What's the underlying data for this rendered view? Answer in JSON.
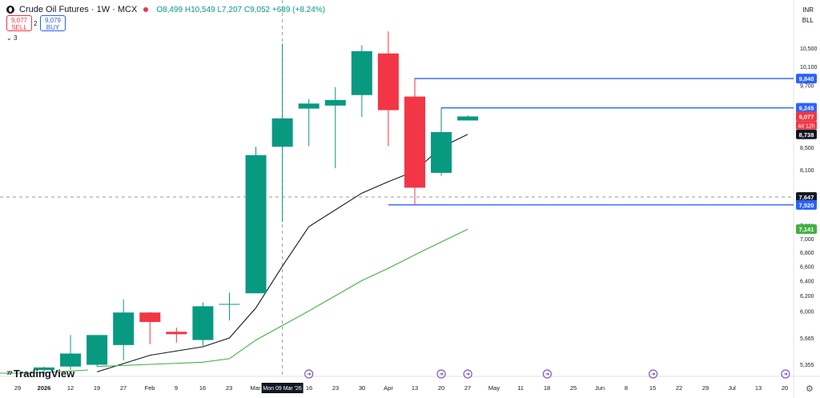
{
  "header": {
    "title": "Crude Oil Futures · 1W · MCX",
    "ohlc_label": "O8,499 H10,549 L7,207 C9,052 +689 (+8.24%)",
    "sell_price": "9,077",
    "sell_label": "SELL",
    "spread": "2",
    "buy_price": "9,079",
    "buy_label": "BUY",
    "indicator_count": "3"
  },
  "currency": "INR",
  "settlement": "BLL",
  "logo_text": "TradingView",
  "colors": {
    "up": "#089981",
    "down": "#f23645",
    "ma_fast": "#131722",
    "ma_slow": "#43b043",
    "hline": "#2962ff"
  },
  "chart_data": {
    "type": "candlestick",
    "timeframe": "1W",
    "crosshair_date_label": "Mon 09 Mar '26",
    "crosshair_price_label": "7,647",
    "countdown_label": "4d 12h",
    "x_tick_labels": [
      "29",
      "2026",
      "12",
      "19",
      "27",
      "Feb",
      "9",
      "16",
      "23",
      "Mar",
      "16",
      "23",
      "30",
      "Apr",
      "13",
      "20",
      "27",
      "May",
      "11",
      "18",
      "25",
      "Jun",
      "8",
      "15",
      "22",
      "29",
      "Jul",
      "13",
      "20"
    ],
    "y_tick_labels": [
      5355,
      5665,
      6000,
      6200,
      6400,
      6600,
      6800,
      7000,
      7200,
      7600,
      8100,
      8500,
      8700,
      9300,
      9700,
      10100,
      10500
    ],
    "y_axis_scale": "log",
    "ylim": [
      5240,
      11200
    ],
    "candles": [
      {
        "x": "2026-01-05",
        "open": 5290,
        "high": 5330,
        "low": 5240,
        "close": 5320
      },
      {
        "x": "2026-01-12",
        "open": 5330,
        "high": 5700,
        "low": 5290,
        "close": 5480
      },
      {
        "x": "2026-01-19",
        "open": 5350,
        "high": 5700,
        "low": 5330,
        "close": 5700
      },
      {
        "x": "2026-01-26",
        "open": 5580,
        "high": 6150,
        "low": 5400,
        "close": 5980
      },
      {
        "x": "2026-02-02",
        "open": 5980,
        "high": 5985,
        "low": 5590,
        "close": 5860
      },
      {
        "x": "2026-02-09",
        "open": 5740,
        "high": 5790,
        "low": 5610,
        "close": 5710
      },
      {
        "x": "2026-02-16",
        "open": 5640,
        "high": 6110,
        "low": 5570,
        "close": 6060
      },
      {
        "x": "2026-02-23",
        "open": 6090,
        "high": 6240,
        "low": 5880,
        "close": 6090
      },
      {
        "x": "2026-03-02",
        "open": 6230,
        "high": 8510,
        "low": 6230,
        "close": 8360
      },
      {
        "x": "2026-03-09",
        "open": 8510,
        "high": 10600,
        "low": 7250,
        "close": 9040
      },
      {
        "x": "2026-03-16",
        "open": 9230,
        "high": 9420,
        "low": 8520,
        "close": 9330
      },
      {
        "x": "2026-03-23",
        "open": 9290,
        "high": 9660,
        "low": 8130,
        "close": 9400
      },
      {
        "x": "2026-03-30",
        "open": 9500,
        "high": 10560,
        "low": 9070,
        "close": 10430
      },
      {
        "x": "2026-04-06",
        "open": 10380,
        "high": 10880,
        "low": 8520,
        "close": 9200
      },
      {
        "x": "2026-04-13",
        "open": 9470,
        "high": 9840,
        "low": 7520,
        "close": 7800
      },
      {
        "x": "2026-04-20",
        "open": 8050,
        "high": 9245,
        "low": 8000,
        "close": 8780
      },
      {
        "x": "2026-04-27",
        "open": 9000,
        "high": 9099,
        "low": 9005,
        "close": 9077
      }
    ],
    "moving_averages": [
      {
        "period_hint": "fast",
        "color": "#131722",
        "values": [
          {
            "x": "2026-01-19",
            "y": 5270
          },
          {
            "x": "2026-02-02",
            "y": 5460
          },
          {
            "x": "2026-02-16",
            "y": 5560
          },
          {
            "x": "2026-02-23",
            "y": 5665
          },
          {
            "x": "2026-03-02",
            "y": 6040
          },
          {
            "x": "2026-03-09",
            "y": 6600
          },
          {
            "x": "2026-03-16",
            "y": 7180
          },
          {
            "x": "2026-03-30",
            "y": 7710
          },
          {
            "x": "2026-04-06",
            "y": 7900
          },
          {
            "x": "2026-04-13",
            "y": 8080
          },
          {
            "x": "2026-04-20",
            "y": 8500
          },
          {
            "x": "2026-04-27",
            "y": 8738
          }
        ]
      },
      {
        "period_hint": "slow",
        "color": "#43b043",
        "values": [
          {
            "x": "2026-01-19",
            "y": 5330
          },
          {
            "x": "2026-02-02",
            "y": 5355
          },
          {
            "x": "2026-02-16",
            "y": 5380
          },
          {
            "x": "2026-02-23",
            "y": 5420
          },
          {
            "x": "2026-03-02",
            "y": 5640
          },
          {
            "x": "2026-03-16",
            "y": 6000
          },
          {
            "x": "2026-03-30",
            "y": 6400
          },
          {
            "x": "2026-04-06",
            "y": 6570
          },
          {
            "x": "2026-04-13",
            "y": 6760
          },
          {
            "x": "2026-04-20",
            "y": 6950
          },
          {
            "x": "2026-04-27",
            "y": 7141
          }
        ]
      }
    ],
    "horizontal_lines": [
      {
        "y": 9840,
        "x_from": "2026-04-13"
      },
      {
        "y": 9245,
        "x_from": "2026-04-20"
      },
      {
        "y": 7520,
        "x_from": "2026-04-06"
      }
    ],
    "price_labels": [
      {
        "text": "9,840",
        "y": 9840,
        "color": "#2962ff"
      },
      {
        "text": "9,245",
        "y": 9245,
        "color": "#2962ff"
      },
      {
        "text": "9,077",
        "y": 9077,
        "color": "#f23645"
      },
      {
        "text": "8,738",
        "y": 8738,
        "color": "#131722"
      },
      {
        "text": "7,647",
        "y": 7647,
        "color": "#131722"
      },
      {
        "text": "7,520",
        "y": 7520,
        "color": "#2962ff"
      },
      {
        "text": "7,141",
        "y": 7141,
        "color": "#43b043"
      }
    ],
    "event_markers": [
      "2026-03-16",
      "2026-04-20",
      "2026-04-27",
      "2026-05-18",
      "2026-06-15",
      "2026-07-20"
    ],
    "grid": false
  }
}
